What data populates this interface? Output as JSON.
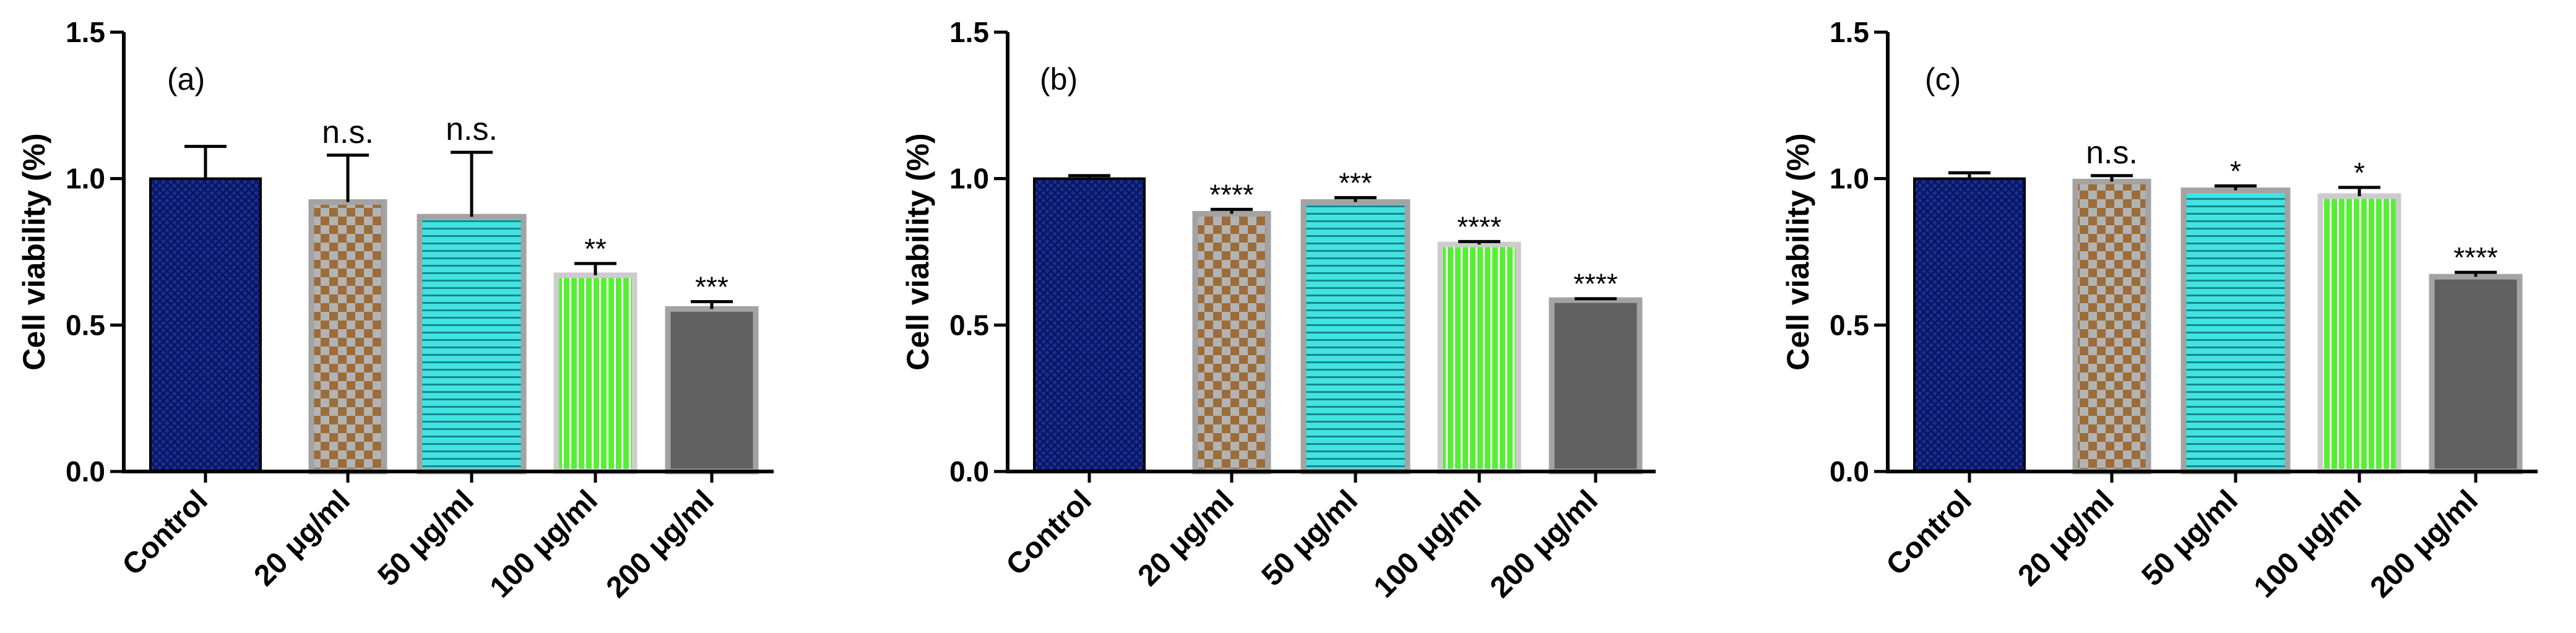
{
  "chart_data": [
    {
      "type": "bar",
      "panel_label": "(a)",
      "ylabel": "Cell viability (%)",
      "xlabel": "",
      "ylim": [
        0,
        1.5
      ],
      "yticks": [
        "0.0",
        "0.5",
        "1.0",
        "1.5"
      ],
      "categories": [
        "Control",
        "20 μg/ml",
        "50 μg/ml",
        "100 μg/ml",
        "200 μg/ml"
      ],
      "values": [
        1.0,
        0.92,
        0.87,
        0.67,
        0.555
      ],
      "errors": [
        0.11,
        0.16,
        0.22,
        0.04,
        0.025
      ],
      "significance": [
        "",
        "n.s.",
        "n.s.",
        "**",
        "***"
      ],
      "colors": [
        "#152a8c",
        "#9c7040",
        "#3fdcdc",
        "#44dd22",
        "#606060"
      ],
      "patterns": [
        "crosshatch",
        "checker",
        "hlines",
        "vlines",
        "solid"
      ]
    },
    {
      "type": "bar",
      "panel_label": "(b)",
      "ylabel": "Cell viability (%)",
      "xlabel": "",
      "ylim": [
        0,
        1.5
      ],
      "yticks": [
        "0.0",
        "0.5",
        "1.0",
        "1.5"
      ],
      "categories": [
        "Control",
        "20 μg/ml",
        "50 μg/ml",
        "100 μg/ml",
        "200 μg/ml"
      ],
      "values": [
        1.0,
        0.88,
        0.92,
        0.775,
        0.585
      ],
      "errors": [
        0.01,
        0.015,
        0.015,
        0.01,
        0.005
      ],
      "significance": [
        "",
        "****",
        "***",
        "****",
        "****"
      ],
      "colors": [
        "#152a8c",
        "#9c7040",
        "#3fdcdc",
        "#44dd22",
        "#606060"
      ],
      "patterns": [
        "crosshatch",
        "checker",
        "hlines",
        "vlines",
        "solid"
      ]
    },
    {
      "type": "bar",
      "panel_label": "(c)",
      "ylabel": "Cell viability (%)",
      "xlabel": "",
      "ylim": [
        0,
        1.5
      ],
      "yticks": [
        "0.0",
        "0.5",
        "1.0",
        "1.5"
      ],
      "categories": [
        "Control",
        "20 μg/ml",
        "50 μg/ml",
        "100 μg/ml",
        "200 μg/ml"
      ],
      "values": [
        1.0,
        0.99,
        0.96,
        0.94,
        0.665
      ],
      "errors": [
        0.02,
        0.02,
        0.015,
        0.03,
        0.015
      ],
      "significance": [
        "",
        "n.s.",
        "*",
        "*",
        "****"
      ],
      "colors": [
        "#152a8c",
        "#9c7040",
        "#3fdcdc",
        "#44dd22",
        "#606060"
      ],
      "patterns": [
        "crosshatch",
        "checker",
        "hlines",
        "vlines",
        "solid"
      ]
    }
  ]
}
